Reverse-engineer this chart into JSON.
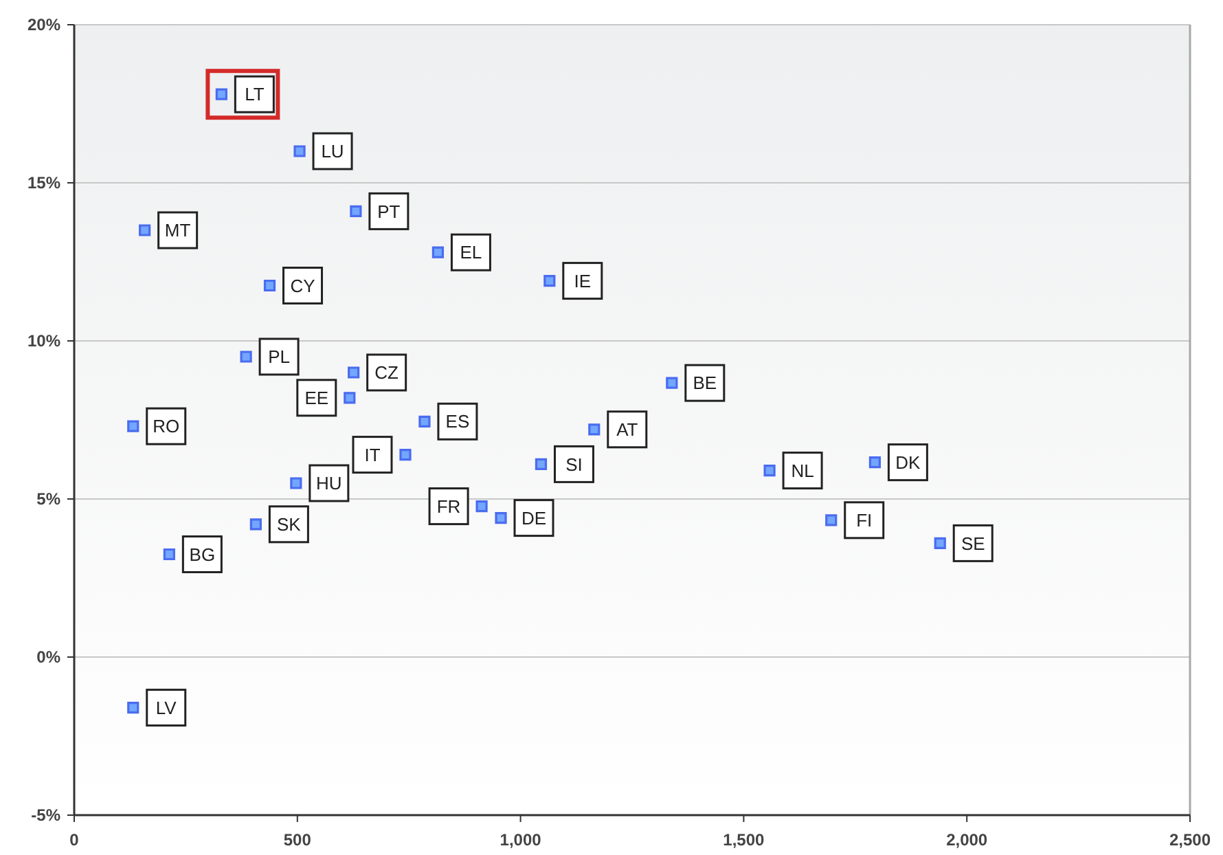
{
  "chart_data": {
    "type": "scatter",
    "marker": "square",
    "grid": "y",
    "xlim": [
      0,
      2500
    ],
    "xticks": [
      0,
      {
        "value": 500,
        "label": "500"
      },
      {
        "value": 1000,
        "label": "1,000"
      },
      {
        "value": 1500,
        "label": "1,500"
      },
      {
        "value": 2000,
        "label": "2,000"
      },
      {
        "value": 2500,
        "label": "2,500"
      }
    ],
    "ylim": [
      -5,
      20
    ],
    "yticks": [
      {
        "value": -5,
        "label": "-5%"
      },
      {
        "value": 0,
        "label": "0%"
      },
      {
        "value": 5,
        "label": "5%"
      },
      {
        "value": 10,
        "label": "10%"
      },
      {
        "value": 15,
        "label": "15%"
      },
      {
        "value": 20,
        "label": "20%"
      }
    ],
    "series": [
      {
        "color": "#4a6cf0",
        "x": [
          505,
          631,
          158,
          815,
          1065,
          438,
          385,
          626,
          617,
          132,
          785,
          742,
          497,
          407,
          213,
          913,
          956,
          1046,
          132,
          1165,
          1339,
          1558,
          1794,
          1696,
          1940
        ],
        "values": [
          16.0,
          14.1,
          13.5,
          12.8,
          11.9,
          11.75,
          9.5,
          9.0,
          8.2,
          7.3,
          7.45,
          6.4,
          5.5,
          4.2,
          3.25,
          4.77,
          4.4,
          6.1,
          -1.6,
          7.2,
          8.67,
          5.9,
          6.16,
          4.33,
          3.6
        ],
        "value_labels": [
          "LU",
          "PT",
          "MT",
          "EL",
          "IE",
          "CY",
          "PL",
          "CZ",
          "EE",
          "RO",
          "ES",
          "IT",
          "HU",
          "SK",
          "BG",
          "FR",
          "DE",
          "SI",
          "LV",
          "AT",
          "BE",
          "NL",
          "DK",
          "FI",
          "SE"
        ]
      },
      {
        "color": "#4a6cf0",
        "x": [
          330
        ],
        "values": [
          17.8
        ],
        "value_labels": [
          "LT"
        ]
      }
    ]
  }
}
